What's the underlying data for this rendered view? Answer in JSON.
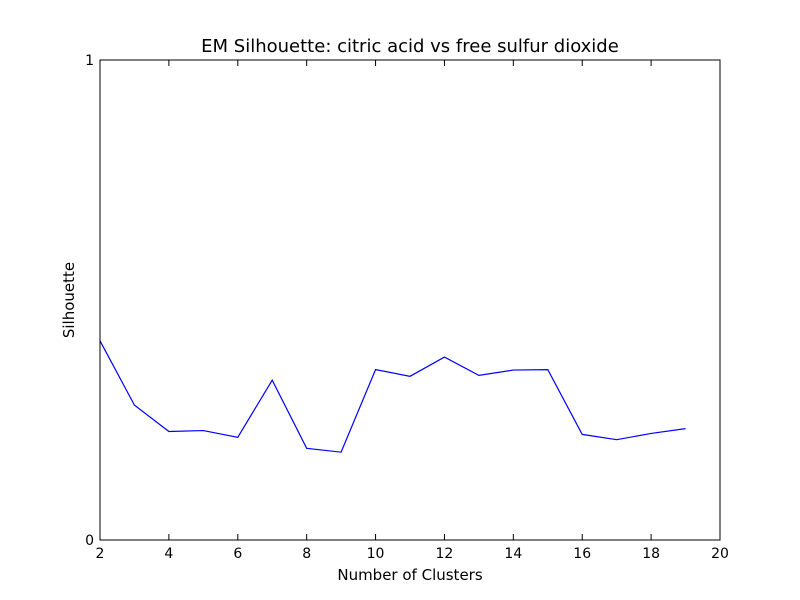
{
  "chart_data": {
    "type": "line",
    "title": "EM Silhouette: citric acid vs free sulfur dioxide",
    "xlabel": "Number of Clusters",
    "ylabel": "Silhouette",
    "xlim": [
      2,
      20
    ],
    "ylim": [
      0,
      1
    ],
    "xticks": [
      2,
      4,
      6,
      8,
      10,
      12,
      14,
      16,
      18,
      20
    ],
    "yticks": [
      0,
      1
    ],
    "grid": false,
    "line_color": "#0000ff",
    "series": [
      {
        "x": [
          2,
          3,
          4,
          5,
          6,
          7,
          8,
          9,
          10,
          11,
          12,
          13,
          14,
          15,
          16,
          17,
          18,
          19
        ],
        "y": [
          0.415,
          0.281,
          0.226,
          0.228,
          0.214,
          0.333,
          0.191,
          0.183,
          0.355,
          0.341,
          0.381,
          0.343,
          0.354,
          0.355,
          0.22,
          0.209,
          0.222,
          0.232
        ]
      }
    ]
  }
}
